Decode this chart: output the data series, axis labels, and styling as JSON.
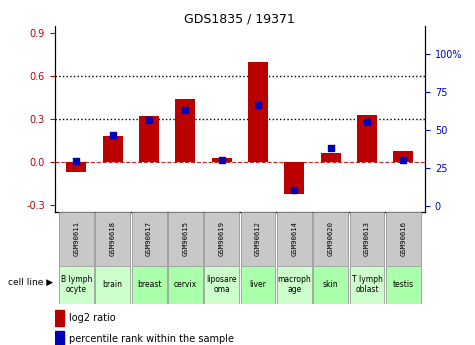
{
  "title": "GDS1835 / 19371",
  "samples": [
    "GSM90611",
    "GSM90618",
    "GSM90617",
    "GSM90615",
    "GSM90619",
    "GSM90612",
    "GSM90614",
    "GSM90620",
    "GSM90613",
    "GSM90616"
  ],
  "cell_lines": [
    "B lymph\nocyte",
    "brain",
    "breast",
    "cervix",
    "liposare\noma",
    "liver",
    "macroph\nage",
    "skin",
    "T lymph\noblast",
    "testis"
  ],
  "cell_line_colors": [
    "#ccffcc",
    "#ccffcc",
    "#aaffaa",
    "#aaffaa",
    "#ccffcc",
    "#aaffaa",
    "#ccffcc",
    "#aaffaa",
    "#ccffcc",
    "#aaffaa"
  ],
  "log2_ratio": [
    -0.07,
    0.18,
    0.32,
    0.44,
    0.03,
    0.7,
    -0.22,
    0.06,
    0.33,
    0.08
  ],
  "percentile_rank": [
    29.5,
    46.5,
    56.5,
    63.0,
    30.0,
    66.5,
    10.0,
    38.0,
    55.5,
    30.0
  ],
  "bar_color": "#bb0000",
  "dot_color": "#0000bb",
  "ylim_left": [
    -0.35,
    0.95
  ],
  "ylim_right": [
    -4.375,
    118.75
  ],
  "yticks_left": [
    -0.3,
    0.0,
    0.3,
    0.6,
    0.9
  ],
  "yticks_right_vals": [
    0,
    25,
    50,
    75,
    100
  ],
  "yticks_right_labels": [
    "0",
    "25",
    "50",
    "75",
    "100%"
  ],
  "hlines": [
    0.3,
    0.6
  ],
  "hline_zero_color": "#cc2222",
  "hline_color": "#000000",
  "legend_log2": "log2 ratio",
  "legend_pct": "percentile rank within the sample"
}
